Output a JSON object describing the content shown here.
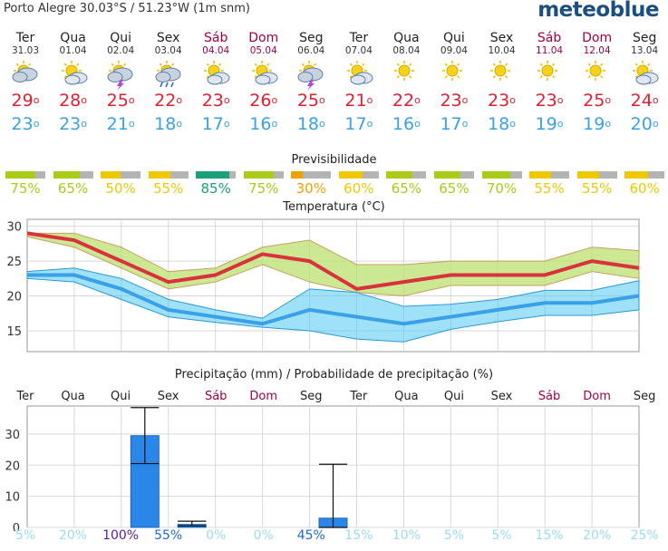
{
  "header": {
    "location": "Porto Alegre  30.03°S / 51.23°W (1m snm)",
    "logo": "meteoblue"
  },
  "days": [
    {
      "name": "Ter",
      "date": "31.03",
      "weekend": false,
      "icon": "partly-cloudy-icon",
      "tmax": "29",
      "tmin": "23"
    },
    {
      "name": "Qua",
      "date": "01.04",
      "weekend": false,
      "icon": "sun-cloud-icon",
      "tmax": "28",
      "tmin": "23"
    },
    {
      "name": "Qui",
      "date": "02.04",
      "weekend": false,
      "icon": "thunderstorm-icon",
      "tmax": "25",
      "tmin": "21"
    },
    {
      "name": "Sex",
      "date": "03.04",
      "weekend": false,
      "icon": "rain-icon",
      "tmax": "22",
      "tmin": "18"
    },
    {
      "name": "Sáb",
      "date": "04.04",
      "weekend": true,
      "icon": "sun-cloud-icon",
      "tmax": "23",
      "tmin": "17"
    },
    {
      "name": "Dom",
      "date": "05.04",
      "weekend": true,
      "icon": "sun-cloud-icon",
      "tmax": "26",
      "tmin": "16"
    },
    {
      "name": "Seg",
      "date": "06.04",
      "weekend": false,
      "icon": "thunderstorm-icon",
      "tmax": "25",
      "tmin": "18"
    },
    {
      "name": "Ter",
      "date": "07.04",
      "weekend": false,
      "icon": "sun-cloud-icon",
      "tmax": "21",
      "tmin": "17"
    },
    {
      "name": "Qua",
      "date": "08.04",
      "weekend": false,
      "icon": "sun-icon",
      "tmax": "22",
      "tmin": "16"
    },
    {
      "name": "Qui",
      "date": "09.04",
      "weekend": false,
      "icon": "sun-icon",
      "tmax": "23",
      "tmin": "17"
    },
    {
      "name": "Sex",
      "date": "10.04",
      "weekend": false,
      "icon": "sun-icon",
      "tmax": "23",
      "tmin": "18"
    },
    {
      "name": "Sáb",
      "date": "11.04",
      "weekend": true,
      "icon": "sun-icon",
      "tmax": "23",
      "tmin": "19"
    },
    {
      "name": "Dom",
      "date": "12.04",
      "weekend": true,
      "icon": "sun-icon",
      "tmax": "25",
      "tmin": "19"
    },
    {
      "name": "Seg",
      "date": "13.04",
      "weekend": false,
      "icon": "sun-cloud-icon",
      "tmax": "24",
      "tmin": "20"
    }
  ],
  "predictability": {
    "title": "Previsibilidade",
    "items": [
      {
        "pct": "75%",
        "level": 0.75,
        "color": "#a8cc18"
      },
      {
        "pct": "65%",
        "level": 0.65,
        "color": "#a8cc18"
      },
      {
        "pct": "50%",
        "level": 0.5,
        "color": "#f0c800"
      },
      {
        "pct": "55%",
        "level": 0.55,
        "color": "#f0c800"
      },
      {
        "pct": "85%",
        "level": 0.85,
        "color": "#1aa07a"
      },
      {
        "pct": "75%",
        "level": 0.75,
        "color": "#a8cc18"
      },
      {
        "pct": "30%",
        "level": 0.3,
        "color": "#f0a000"
      },
      {
        "pct": "60%",
        "level": 0.6,
        "color": "#f0c800"
      },
      {
        "pct": "65%",
        "level": 0.65,
        "color": "#a8cc18"
      },
      {
        "pct": "65%",
        "level": 0.65,
        "color": "#a8cc18"
      },
      {
        "pct": "70%",
        "level": 0.7,
        "color": "#a8cc18"
      },
      {
        "pct": "55%",
        "level": 0.55,
        "color": "#f0c800"
      },
      {
        "pct": "55%",
        "level": 0.55,
        "color": "#f0c800"
      },
      {
        "pct": "60%",
        "level": 0.6,
        "color": "#f0c800"
      }
    ]
  },
  "chart_data": [
    {
      "type": "line",
      "title": "Temperatura (°C)",
      "yticks": [
        15,
        20,
        25,
        30
      ],
      "ylim": [
        12,
        31
      ],
      "tmax_series": [
        29,
        28,
        25,
        22,
        23,
        26,
        25,
        21,
        22,
        23,
        23,
        23,
        25,
        24
      ],
      "tmax_upper": [
        29,
        29,
        27,
        23.5,
        24,
        27,
        28,
        24.5,
        24.5,
        25,
        25,
        25,
        27,
        26.5
      ],
      "tmax_lower": [
        28.5,
        27,
        24,
        21,
        22,
        24.5,
        22,
        20.5,
        20,
        21.5,
        21.5,
        21.5,
        23.5,
        22.5
      ],
      "tmin_series": [
        23,
        23,
        21,
        18,
        17,
        16,
        18,
        17,
        16,
        17,
        18,
        19,
        19,
        20
      ],
      "tmin_upper": [
        23.5,
        24,
        22.5,
        19.5,
        18,
        16.8,
        21,
        20.5,
        18.5,
        18.8,
        19.5,
        20.8,
        20.8,
        22.2
      ],
      "tmin_lower": [
        22.5,
        22,
        19.5,
        17,
        16.2,
        15.5,
        15,
        13.8,
        13.4,
        15.2,
        16.3,
        17.2,
        17.2,
        18
      ]
    },
    {
      "type": "bar",
      "title": "Precipitação (mm) / Probabilidade de precipitação (%)",
      "categories": [
        "Ter",
        "Qua",
        "Qui",
        "Sex",
        "Sáb",
        "Dom",
        "Seg",
        "Ter",
        "Qua",
        "Qui",
        "Sex",
        "Sáb",
        "Dom",
        "Seg"
      ],
      "weekend": [
        false,
        false,
        false,
        false,
        true,
        true,
        false,
        false,
        false,
        false,
        false,
        true,
        true,
        false
      ],
      "values": [
        0,
        0,
        29.5,
        1,
        0,
        0,
        3,
        0,
        0,
        0,
        0,
        0,
        0,
        0
      ],
      "err_low": [
        null,
        null,
        20.5,
        0.5,
        null,
        null,
        0,
        null,
        null,
        null,
        null,
        null,
        null,
        null
      ],
      "err_high": [
        null,
        null,
        38.5,
        2,
        null,
        null,
        20.3,
        null,
        null,
        null,
        null,
        null,
        null,
        null
      ],
      "probability": [
        "5%",
        "20%",
        "100%",
        "55%",
        "0%",
        "0%",
        "45%",
        "15%",
        "10%",
        "5%",
        "5%",
        "15%",
        "20%",
        "25%"
      ],
      "prob_colors": [
        "#9adcf0",
        "#9adcf0",
        "#5a1aa8",
        "#1a6ad0",
        "#9adcf0",
        "#9adcf0",
        "#1a6ad0",
        "#9adcf0",
        "#9adcf0",
        "#9adcf0",
        "#9adcf0",
        "#9adcf0",
        "#9adcf0",
        "#9adcf0"
      ],
      "yticks": [
        0,
        10,
        20,
        30
      ],
      "ylim": [
        0,
        39
      ]
    }
  ]
}
